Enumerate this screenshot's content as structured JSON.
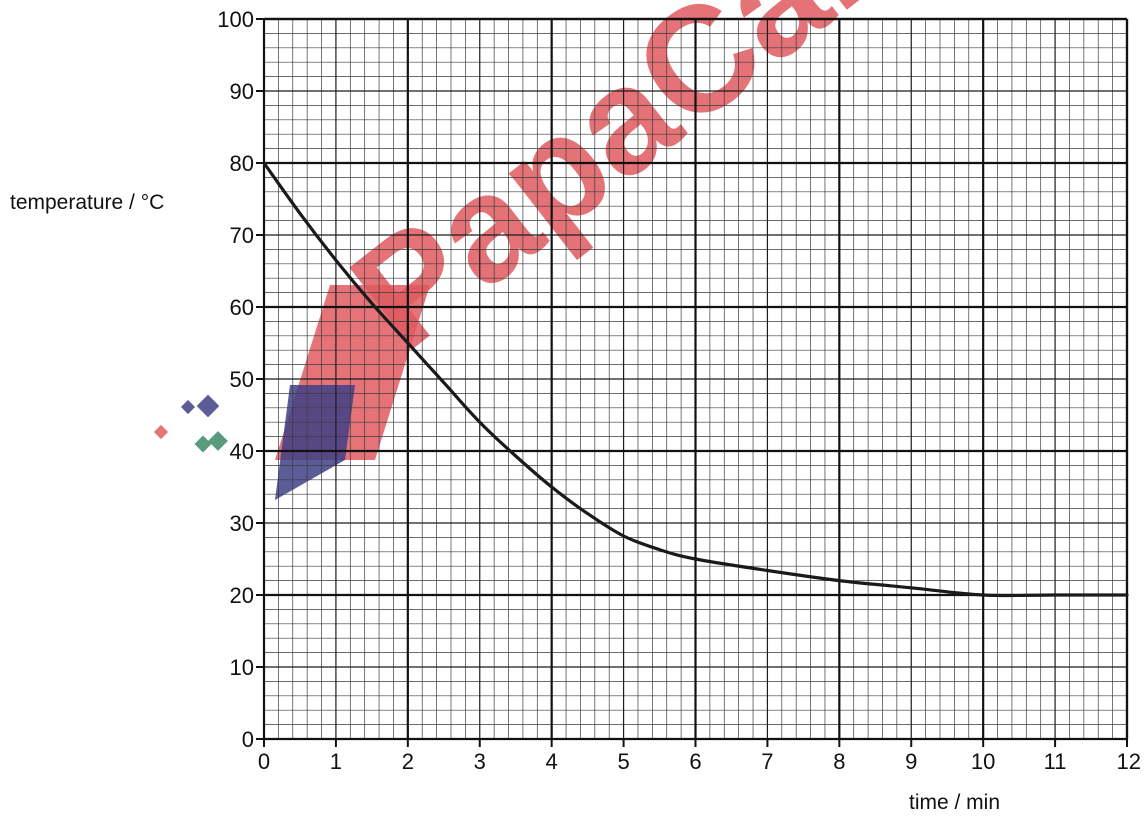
{
  "chart_data": {
    "type": "line",
    "xlabel": "time / min",
    "ylabel": "temperature / °C",
    "xlim": [
      0,
      12
    ],
    "ylim": [
      0,
      100
    ],
    "x_ticks": [
      "0",
      "1",
      "2",
      "3",
      "4",
      "5",
      "6",
      "7",
      "8",
      "9",
      "10",
      "11",
      "12"
    ],
    "y_ticks": [
      "0",
      "10",
      "20",
      "30",
      "40",
      "50",
      "60",
      "70",
      "80",
      "90",
      "100"
    ],
    "grid": true,
    "series": [
      {
        "x": [
          0,
          0.5,
          1,
          1.5,
          2,
          2.5,
          3,
          3.5,
          4,
          4.5,
          5,
          5.5,
          6,
          7,
          8,
          9,
          10,
          11,
          12
        ],
        "y": [
          80,
          73,
          66.5,
          60.5,
          55,
          49.5,
          44,
          39.3,
          35,
          31.3,
          28.2,
          26.3,
          25,
          23.4,
          22,
          21,
          20,
          20,
          20
        ],
        "color": "#1a1a1a"
      }
    ]
  },
  "watermark": {
    "text": "PapaCambridge",
    "colors": {
      "red": "#e05a5f",
      "navy": "#3e3f86",
      "green": "#3e8a66"
    }
  }
}
